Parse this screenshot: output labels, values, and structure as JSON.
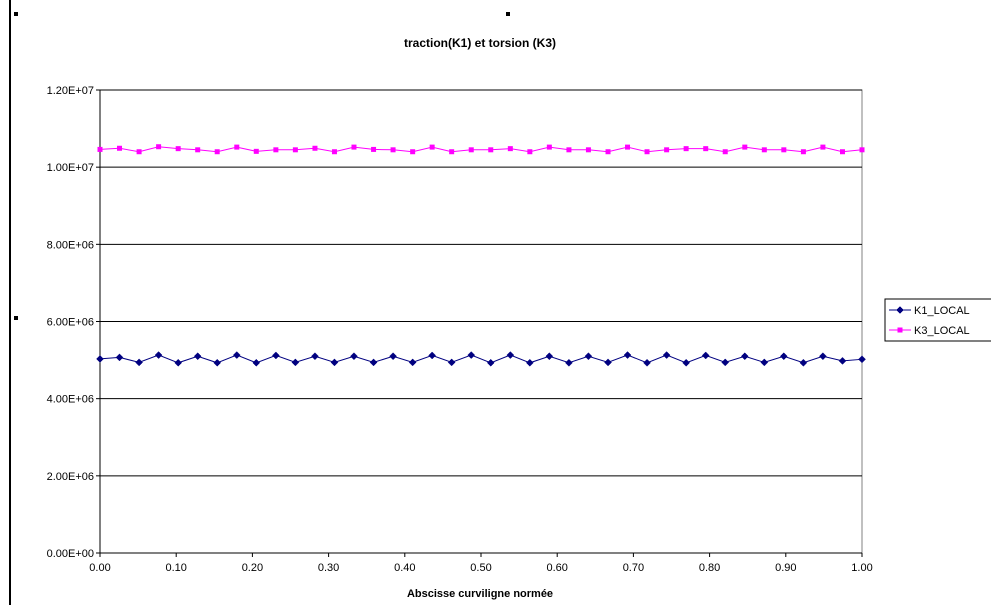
{
  "chart_data": {
    "type": "line",
    "title": "traction(K1) et torsion (K3)",
    "xlabel": "Abscisse curviligne normée",
    "ylabel": "",
    "xlim": [
      0,
      1
    ],
    "ylim": [
      0,
      12000000
    ],
    "x_ticks": [
      "0.00",
      "0.10",
      "0.20",
      "0.30",
      "0.40",
      "0.50",
      "0.60",
      "0.70",
      "0.80",
      "0.90",
      "1.00"
    ],
    "y_ticks": [
      "0.00E+00",
      "2.00E+06",
      "4.00E+06",
      "6.00E+06",
      "8.00E+06",
      "1.00E+07",
      "1.20E+07"
    ],
    "grid": true,
    "legend_position": "right",
    "x": [
      0,
      0.0256,
      0.0513,
      0.0769,
      0.1026,
      0.1282,
      0.1538,
      0.1795,
      0.2051,
      0.2308,
      0.2564,
      0.2821,
      0.3077,
      0.3333,
      0.359,
      0.3846,
      0.4103,
      0.4359,
      0.4615,
      0.4872,
      0.5128,
      0.5385,
      0.5641,
      0.5897,
      0.6154,
      0.641,
      0.6667,
      0.6923,
      0.7179,
      0.7436,
      0.7692,
      0.7949,
      0.8205,
      0.8462,
      0.8718,
      0.8974,
      0.9231,
      0.9487,
      0.9744,
      1.0
    ],
    "series": [
      {
        "name": "K1_LOCAL",
        "color": "#000080",
        "marker": "diamond",
        "values": [
          5030000,
          5070000,
          4940000,
          5130000,
          4930000,
          5100000,
          4930000,
          5130000,
          4930000,
          5120000,
          4940000,
          5100000,
          4940000,
          5100000,
          4940000,
          5100000,
          4940000,
          5120000,
          4940000,
          5130000,
          4930000,
          5130000,
          4930000,
          5100000,
          4930000,
          5100000,
          4940000,
          5130000,
          4930000,
          5130000,
          4930000,
          5120000,
          4940000,
          5100000,
          4940000,
          5100000,
          4930000,
          5100000,
          4980000,
          5020000
        ]
      },
      {
        "name": "K3_LOCAL",
        "color": "#ff00ff",
        "marker": "square",
        "values": [
          10460000,
          10490000,
          10400000,
          10530000,
          10480000,
          10450000,
          10400000,
          10520000,
          10410000,
          10450000,
          10450000,
          10490000,
          10400000,
          10520000,
          10460000,
          10450000,
          10400000,
          10520000,
          10400000,
          10450000,
          10450000,
          10480000,
          10400000,
          10520000,
          10450000,
          10450000,
          10400000,
          10520000,
          10400000,
          10450000,
          10480000,
          10480000,
          10400000,
          10520000,
          10450000,
          10450000,
          10400000,
          10520000,
          10400000,
          10450000
        ]
      }
    ]
  }
}
